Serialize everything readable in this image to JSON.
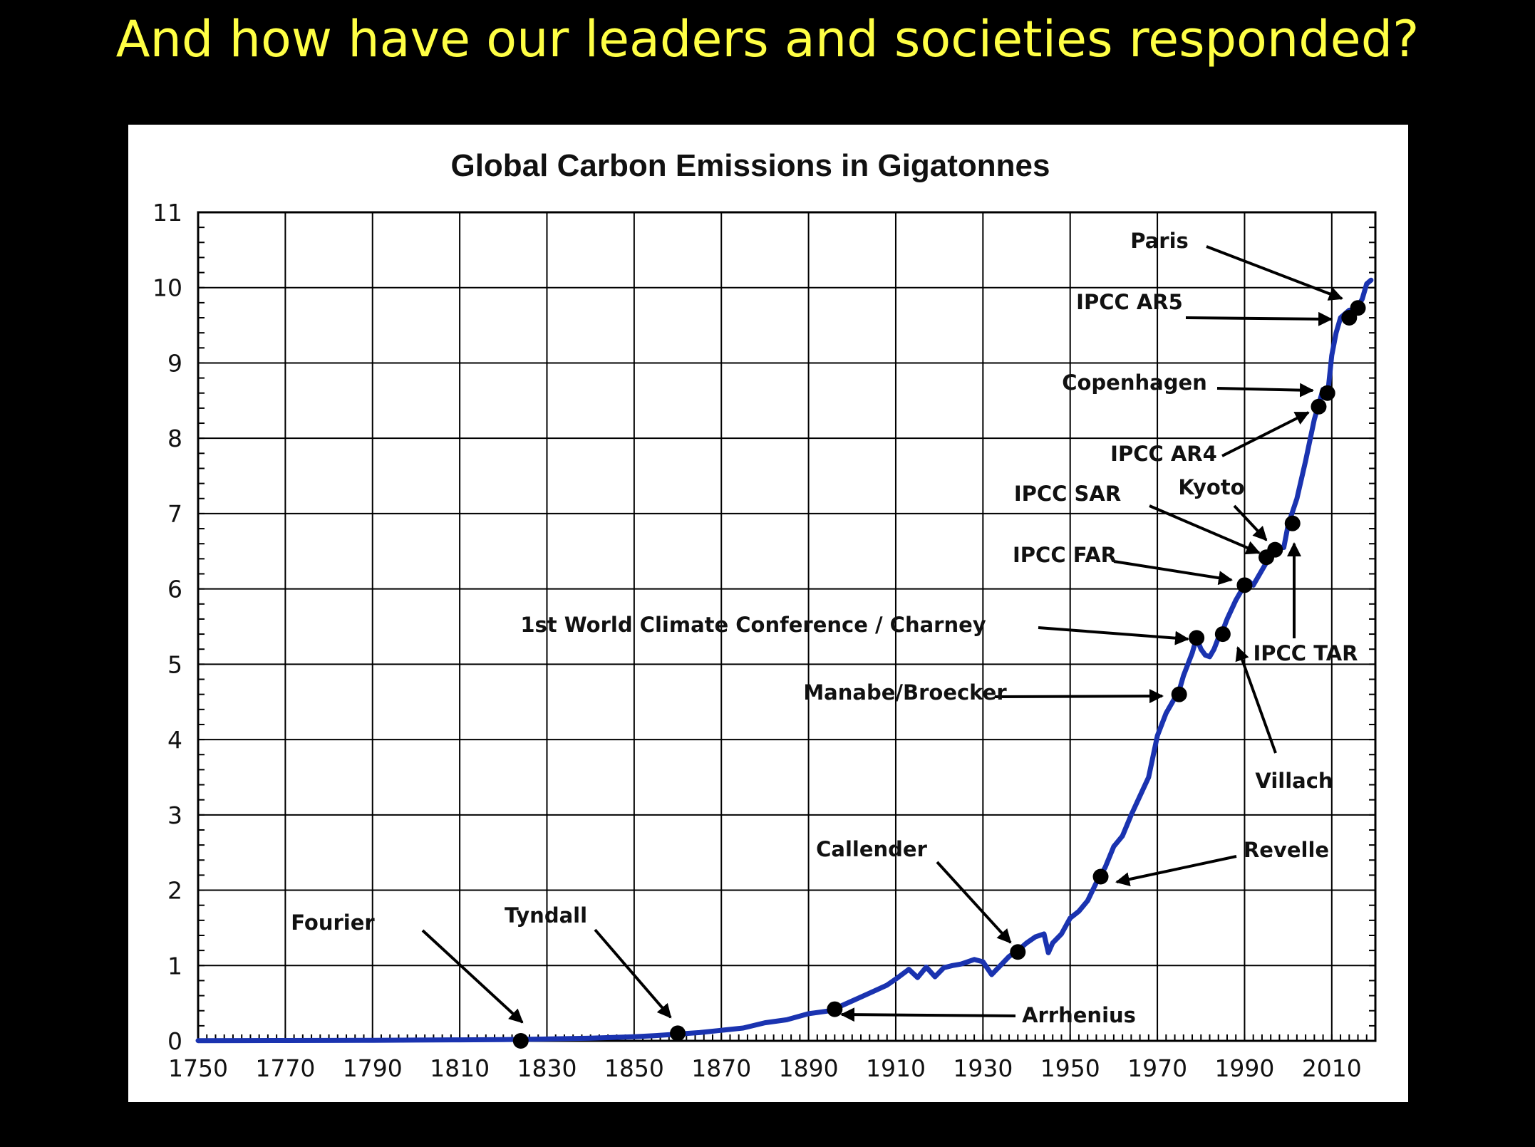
{
  "slide": {
    "title": "And how have our leaders and societies responded?"
  },
  "colors": {
    "background": "#000000",
    "title": "#ffff44",
    "line": "#1a33b0",
    "marker": "#000000",
    "grid": "#000000"
  },
  "chart_data": {
    "type": "line",
    "title": "Global Carbon Emissions in Gigatonnes",
    "xlabel": "",
    "ylabel": "",
    "xlim": [
      1750,
      2020
    ],
    "ylim": [
      0,
      11
    ],
    "grid": true,
    "legend": "none",
    "x_ticks": [
      1750,
      1770,
      1790,
      1810,
      1830,
      1850,
      1870,
      1890,
      1910,
      1930,
      1950,
      1970,
      1990,
      2010
    ],
    "y_ticks": [
      0,
      1,
      2,
      3,
      4,
      5,
      6,
      7,
      8,
      9,
      10,
      11
    ],
    "series": [
      {
        "x": [
          1750,
          1760,
          1770,
          1780,
          1790,
          1800,
          1810,
          1820,
          1830,
          1840,
          1850,
          1855,
          1860,
          1865,
          1870,
          1875,
          1880,
          1885,
          1890,
          1895,
          1900,
          1905,
          1908,
          1910,
          1913,
          1915,
          1917,
          1919,
          1921,
          1923,
          1925,
          1928,
          1930,
          1932,
          1934,
          1936,
          1938,
          1940,
          1942,
          1944,
          1945,
          1946,
          1948,
          1950,
          1952,
          1954,
          1956,
          1958,
          1960,
          1962,
          1964,
          1966,
          1968,
          1970,
          1972,
          1974,
          1975,
          1976,
          1978,
          1979,
          1980,
          1981,
          1982,
          1983,
          1984,
          1985,
          1986,
          1988,
          1990,
          1991,
          1992,
          1993,
          1994,
          1996,
          1998,
          1999,
          2000,
          2002,
          2004,
          2006,
          2008,
          2009,
          2010,
          2011,
          2012,
          2013,
          2014,
          2015,
          2016,
          2017,
          2018,
          2019
        ],
        "y": [
          0.003,
          0.004,
          0.005,
          0.006,
          0.008,
          0.01,
          0.013,
          0.016,
          0.025,
          0.035,
          0.055,
          0.07,
          0.09,
          0.11,
          0.14,
          0.17,
          0.24,
          0.28,
          0.36,
          0.4,
          0.53,
          0.66,
          0.74,
          0.82,
          0.95,
          0.84,
          0.98,
          0.85,
          0.97,
          1.0,
          1.02,
          1.08,
          1.05,
          0.88,
          1.0,
          1.12,
          1.2,
          1.3,
          1.38,
          1.42,
          1.17,
          1.3,
          1.42,
          1.63,
          1.72,
          1.86,
          2.1,
          2.3,
          2.58,
          2.72,
          3.0,
          3.25,
          3.5,
          4.05,
          4.35,
          4.55,
          4.65,
          4.85,
          5.15,
          5.35,
          5.2,
          5.12,
          5.1,
          5.2,
          5.35,
          5.45,
          5.6,
          5.85,
          6.05,
          6.1,
          6.05,
          6.15,
          6.25,
          6.45,
          6.55,
          6.55,
          6.85,
          7.2,
          7.7,
          8.25,
          8.65,
          8.55,
          9.1,
          9.4,
          9.6,
          9.65,
          9.7,
          9.7,
          9.75,
          9.85,
          10.05,
          10.1
        ]
      }
    ],
    "events": [
      {
        "name": "Fourier",
        "year": 1824,
        "value": 0.0
      },
      {
        "name": "Tyndall",
        "year": 1860,
        "value": 0.1
      },
      {
        "name": "Arrhenius",
        "year": 1896,
        "value": 0.42
      },
      {
        "name": "Callender",
        "year": 1938,
        "value": 1.18
      },
      {
        "name": "Revelle",
        "year": 1957,
        "value": 2.18
      },
      {
        "name": "Manabe/Broecker",
        "year": 1975,
        "value": 4.6
      },
      {
        "name": "1st World Climate Conference / Charney",
        "year": 1979,
        "value": 5.35
      },
      {
        "name": "Villach",
        "year": 1985,
        "value": 5.4
      },
      {
        "name": "IPCC FAR",
        "year": 1990,
        "value": 6.05
      },
      {
        "name": "IPCC SAR",
        "year": 1995,
        "value": 6.42
      },
      {
        "name": "Kyoto",
        "year": 1997,
        "value": 6.52
      },
      {
        "name": "IPCC TAR",
        "year": 2001,
        "value": 6.87
      },
      {
        "name": "IPCC AR4",
        "year": 2007,
        "value": 8.42
      },
      {
        "name": "Copenhagen",
        "year": 2009,
        "value": 8.6
      },
      {
        "name": "IPCC AR5",
        "year": 2014,
        "value": 9.6
      },
      {
        "name": "Paris",
        "year": 2016,
        "value": 9.73
      }
    ]
  }
}
